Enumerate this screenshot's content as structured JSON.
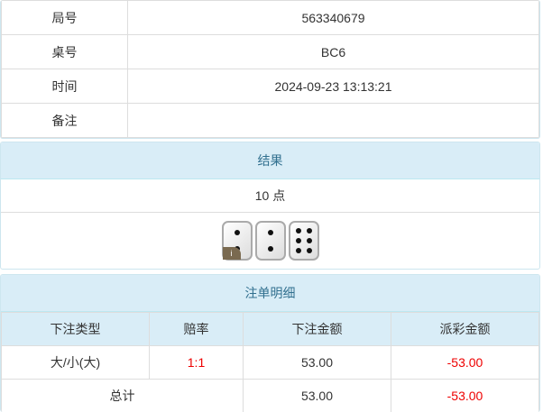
{
  "info": [
    {
      "label": "局号",
      "value": "563340679"
    },
    {
      "label": "桌号",
      "value": "BC6"
    },
    {
      "label": "时间",
      "value": "2024-09-23 13:13:21"
    },
    {
      "label": "备注",
      "value": ""
    }
  ],
  "result": {
    "title": "结果",
    "points": "10 点",
    "dice": [
      2,
      2,
      6
    ],
    "badge": "i"
  },
  "bets": {
    "title": "注单明细",
    "headers": [
      "下注类型",
      "赔率",
      "下注金额",
      "派彩金额"
    ],
    "rows": [
      {
        "type": "大/小(大)",
        "odds": "1:1",
        "amount": "53.00",
        "payout": "-53.00"
      }
    ],
    "total": {
      "label": "总计",
      "amount": "53.00",
      "payout": "-53.00"
    }
  },
  "colors": {
    "header_bg": "#d9edf7",
    "negative": "#e00000"
  }
}
